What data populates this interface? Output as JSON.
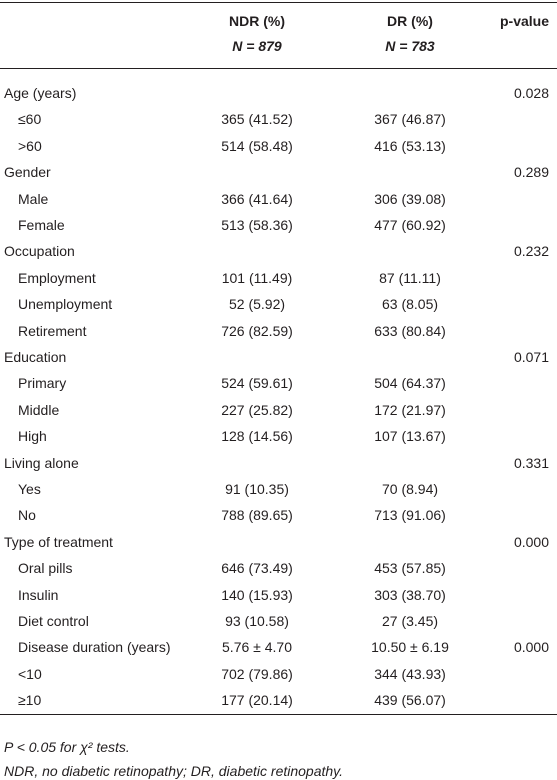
{
  "header": {
    "ndr_title": "NDR (%)",
    "ndr_n": "N = 879",
    "dr_title": "DR (%)",
    "dr_n": "N = 783",
    "p_title": "p-value"
  },
  "groups": [
    {
      "title": "Age (years)",
      "p_value": "0.028",
      "rows": [
        {
          "label": "≤60",
          "ndr": "365 (41.52)",
          "dr": "367 (46.87)"
        },
        {
          "label": ">60",
          "ndr": "514 (58.48)",
          "dr": "416 (53.13)"
        }
      ]
    },
    {
      "title": "Gender",
      "p_value": "0.289",
      "rows": [
        {
          "label": "Male",
          "ndr": "366 (41.64)",
          "dr": "306 (39.08)"
        },
        {
          "label": "Female",
          "ndr": "513 (58.36)",
          "dr": "477 (60.92)"
        }
      ]
    },
    {
      "title": "Occupation",
      "p_value": "0.232",
      "rows": [
        {
          "label": "Employment",
          "ndr": "101 (11.49)",
          "dr": "87 (11.11)"
        },
        {
          "label": "Unemployment",
          "ndr": "52 (5.92)",
          "dr": "63 (8.05)"
        },
        {
          "label": "Retirement",
          "ndr": "726 (82.59)",
          "dr": "633 (80.84)"
        }
      ]
    },
    {
      "title": "Education",
      "p_value": "0.071",
      "rows": [
        {
          "label": "Primary",
          "ndr": "524 (59.61)",
          "dr": "504 (64.37)"
        },
        {
          "label": "Middle",
          "ndr": "227 (25.82)",
          "dr": "172 (21.97)"
        },
        {
          "label": "High",
          "ndr": "128 (14.56)",
          "dr": "107 (13.67)"
        }
      ]
    },
    {
      "title": "Living alone",
      "p_value": "0.331",
      "rows": [
        {
          "label": "Yes",
          "ndr": "91 (10.35)",
          "dr": "70 (8.94)"
        },
        {
          "label": "No",
          "ndr": "788 (89.65)",
          "dr": "713 (91.06)"
        }
      ]
    },
    {
      "title": "Type of treatment",
      "p_value": "0.000",
      "rows": [
        {
          "label": "Oral pills",
          "ndr": "646 (73.49)",
          "dr": "453 (57.85)"
        },
        {
          "label": "Insulin",
          "ndr": "140 (15.93)",
          "dr": "303 (38.70)"
        },
        {
          "label": "Diet control",
          "ndr": "93 (10.58)",
          "dr": "27 (3.45)"
        },
        {
          "label": "Disease duration (years)",
          "ndr": "5.76 ± 4.70",
          "dr": "10.50 ± 6.19",
          "p_value": "0.000"
        },
        {
          "label": "<10",
          "ndr": "702 (79.86)",
          "dr": "344 (43.93)"
        },
        {
          "label": "≥10",
          "ndr": "177 (20.14)",
          "dr": "439 (56.07)"
        }
      ]
    }
  ],
  "footnotes": [
    "P < 0.05 for χ² tests.",
    "NDR, no diabetic retinopathy; DR, diabetic retinopathy."
  ]
}
